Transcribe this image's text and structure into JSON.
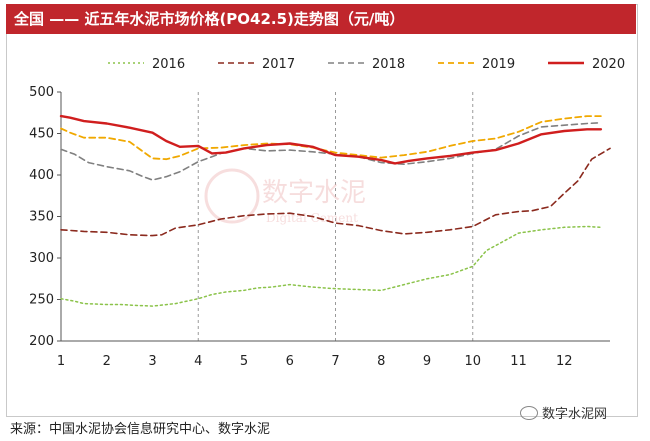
{
  "title": "全国 —— 近五年水泥市场价格(PO42.5)走势图（元/吨）",
  "source": "来源：中国水泥协会信息研究中心、数字水泥",
  "brand": "数字水泥网",
  "watermark": {
    "text": "数字水泥",
    "sub": "Digital Cement"
  },
  "chart_data": {
    "type": "line",
    "title": "全国 —— 近五年水泥市场价格(PO42.5)走势图（元/吨）",
    "xlabel": "",
    "ylabel": "",
    "ylim": [
      200,
      500
    ],
    "yticks": [
      200,
      250,
      300,
      350,
      400,
      450,
      500
    ],
    "xlim": [
      1,
      13
    ],
    "xticks": [
      1,
      2,
      3,
      4,
      5,
      6,
      7,
      8,
      9,
      10,
      11,
      12
    ],
    "xtick_labels": [
      "1",
      "2",
      "3",
      "4",
      "5",
      "6",
      "7",
      "8",
      "9",
      "10",
      "11",
      "12"
    ],
    "vlines": [
      4,
      7,
      10
    ],
    "legend_position": "top",
    "series": [
      {
        "name": "2016",
        "color": "#8bc34a",
        "dash": "2,3",
        "width": 1.5,
        "x": [
          1,
          1.3,
          1.5,
          2,
          2.3,
          2.6,
          3,
          3.5,
          4,
          4.3,
          4.6,
          5,
          5.3,
          5.6,
          6,
          6.5,
          7,
          7.5,
          8,
          8.5,
          9,
          9.5,
          10,
          10.3,
          10.6,
          11,
          11.5,
          12,
          12.5,
          12.8
        ],
        "y": [
          251,
          248,
          245,
          244,
          244,
          243,
          242,
          245,
          251,
          256,
          259,
          261,
          264,
          265,
          268,
          265,
          263,
          262,
          261,
          268,
          275,
          280,
          290,
          309,
          318,
          330,
          334,
          337,
          338,
          337
        ]
      },
      {
        "name": "2017",
        "color": "#8b2a1e",
        "dash": "6,4",
        "width": 1.6,
        "x": [
          1,
          1.5,
          2,
          2.5,
          3,
          3.2,
          3.5,
          4,
          4.5,
          5,
          5.5,
          6,
          6.5,
          7,
          7.5,
          8,
          8.5,
          9,
          9.5,
          10,
          10.5,
          11,
          11.3,
          11.7,
          12,
          12.3,
          12.6,
          13
        ],
        "y": [
          334,
          332,
          331,
          328,
          327,
          328,
          336,
          340,
          347,
          351,
          353,
          354,
          350,
          342,
          339,
          333,
          329,
          331,
          334,
          338,
          352,
          356,
          357,
          362,
          378,
          393,
          419,
          432
        ]
      },
      {
        "name": "2018",
        "color": "#808080",
        "dash": "6,4",
        "width": 1.6,
        "x": [
          1,
          1.3,
          1.6,
          2,
          2.5,
          2.8,
          3,
          3.3,
          3.6,
          4,
          4.5,
          5,
          5.5,
          6,
          6.5,
          7,
          7.5,
          8,
          8.5,
          9,
          9.5,
          10,
          10.5,
          11,
          11.5,
          12,
          12.5,
          12.8
        ],
        "y": [
          431,
          425,
          415,
          410,
          405,
          398,
          394,
          398,
          404,
          416,
          426,
          432,
          429,
          430,
          428,
          425,
          422,
          415,
          413,
          416,
          420,
          426,
          431,
          447,
          458,
          460,
          462,
          463
        ]
      },
      {
        "name": "2019",
        "color": "#f0a800",
        "dash": "6,4",
        "width": 1.8,
        "x": [
          1,
          1.2,
          1.5,
          2,
          2.5,
          2.8,
          3,
          3.3,
          3.6,
          4,
          4.5,
          5,
          5.5,
          6,
          6.5,
          7,
          7.5,
          8,
          8.5,
          9,
          9.5,
          10,
          10.5,
          11,
          11.5,
          12,
          12.5,
          12.8
        ],
        "y": [
          456,
          451,
          445,
          445,
          440,
          428,
          420,
          419,
          423,
          432,
          433,
          436,
          438,
          437,
          433,
          427,
          424,
          421,
          424,
          428,
          435,
          441,
          444,
          452,
          464,
          468,
          471,
          471
        ]
      },
      {
        "name": "2020",
        "color": "#d01e1e",
        "dash": "",
        "width": 2.4,
        "x": [
          1,
          1.2,
          1.5,
          2,
          2.5,
          3,
          3.3,
          3.6,
          4,
          4.3,
          4.6,
          5,
          5.5,
          6,
          6.5,
          7,
          7.5,
          8,
          8.3,
          8.6,
          9,
          9.5,
          10,
          10.5,
          11,
          11.5,
          12,
          12.5,
          12.8
        ],
        "y": [
          471,
          469,
          465,
          462,
          457,
          451,
          441,
          434,
          435,
          426,
          427,
          432,
          436,
          438,
          434,
          424,
          422,
          418,
          414,
          417,
          420,
          423,
          427,
          430,
          438,
          449,
          453,
          455,
          455
        ]
      }
    ]
  }
}
